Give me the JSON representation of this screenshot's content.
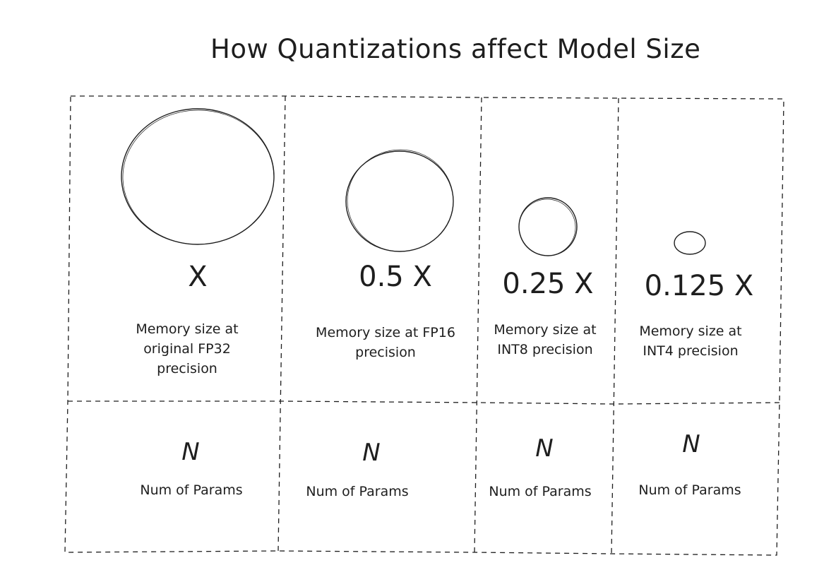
{
  "title": "How Quantizations affect Model Size",
  "columns": [
    {
      "factor": "X",
      "memory_label": "Memory size at original FP32 precision",
      "param_symbol": "N",
      "param_label": "Num of Params"
    },
    {
      "factor": "0.5 X",
      "memory_label": "Memory size at FP16 precision",
      "param_symbol": "N",
      "param_label": "Num of Params"
    },
    {
      "factor": "0.25 X",
      "memory_label": "Memory size at INT8 precision",
      "param_symbol": "N",
      "param_label": "Num of Params"
    },
    {
      "factor": "0.125 X",
      "memory_label": "Memory size at INT4 precision",
      "param_symbol": "N",
      "param_label": "Num of Params"
    }
  ]
}
